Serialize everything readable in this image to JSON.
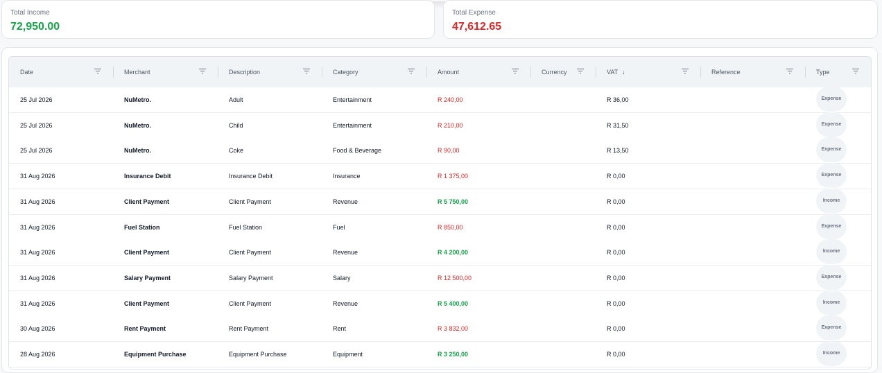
{
  "summary": {
    "income_label": "Total Income",
    "income_value": "72,950.00",
    "expense_label": "Total Expense",
    "expense_value": "47,612.65",
    "income_color": "#16a34a",
    "expense_color": "#dc2626"
  },
  "table": {
    "columns": [
      "Date",
      "Merchant",
      "Description",
      "Category",
      "Amount",
      "Currency",
      "VAT",
      "Reference",
      "Type"
    ],
    "sorted_column": "VAT",
    "sort_direction": "descending",
    "rows": [
      {
        "date": "25 Jul 2026",
        "merchant": "NuMetro.",
        "description": "Adult",
        "category": "Entertainment",
        "amount": "R 240,00",
        "amount_kind": "neg",
        "currency": "",
        "vat": "R 36,00",
        "reference": "",
        "type": "Expense"
      },
      {
        "date": "25 Jul 2026",
        "merchant": "NuMetro.",
        "description": "Child",
        "category": "Entertainment",
        "amount": "R 210,00",
        "amount_kind": "neg",
        "currency": "",
        "vat": "R 31,50",
        "reference": "",
        "type": "Expense"
      },
      {
        "date": "25 Jul 2026",
        "merchant": "NuMetro.",
        "description": "Coke",
        "category": "Food & Beverage",
        "amount": "R 90,00",
        "amount_kind": "neg",
        "currency": "",
        "vat": "R 13,50",
        "reference": "",
        "type": "Expense"
      },
      {
        "date": "31 Aug 2026",
        "merchant": "Insurance Debit",
        "description": "Insurance Debit",
        "category": "Insurance",
        "amount": "R 1 375,00",
        "amount_kind": "neg",
        "currency": "",
        "vat": "R 0,00",
        "reference": "",
        "type": "Expense"
      },
      {
        "date": "31 Aug 2026",
        "merchant": "Client Payment",
        "description": "Client Payment",
        "category": "Revenue",
        "amount": "R 5 750,00",
        "amount_kind": "pos",
        "currency": "",
        "vat": "R 0,00",
        "reference": "",
        "type": "Income"
      },
      {
        "date": "31 Aug 2026",
        "merchant": "Fuel Station",
        "description": "Fuel Station",
        "category": "Fuel",
        "amount": "R 850,00",
        "amount_kind": "neg",
        "currency": "",
        "vat": "R 0,00",
        "reference": "",
        "type": "Expense"
      },
      {
        "date": "31 Aug 2026",
        "merchant": "Client Payment",
        "description": "Client Payment",
        "category": "Revenue",
        "amount": "R 4 200,00",
        "amount_kind": "pos",
        "currency": "",
        "vat": "R 0,00",
        "reference": "",
        "type": "Income"
      },
      {
        "date": "31 Aug 2026",
        "merchant": "Salary Payment",
        "description": "Salary Payment",
        "category": "Salary",
        "amount": "R 12 500,00",
        "amount_kind": "neg",
        "currency": "",
        "vat": "R 0,00",
        "reference": "",
        "type": "Expense"
      },
      {
        "date": "31 Aug 2026",
        "merchant": "Client Payment",
        "description": "Client Payment",
        "category": "Revenue",
        "amount": "R 5 400,00",
        "amount_kind": "pos",
        "currency": "",
        "vat": "R 0,00",
        "reference": "",
        "type": "Income"
      },
      {
        "date": "30 Aug 2026",
        "merchant": "Rent Payment",
        "description": "Rent Payment",
        "category": "Rent",
        "amount": "R 3 832,00",
        "amount_kind": "neg",
        "currency": "",
        "vat": "R 0,00",
        "reference": "",
        "type": "Expense"
      },
      {
        "date": "28 Aug 2026",
        "merchant": "Equipment Purchase",
        "description": "Equipment Purchase",
        "category": "Equipment",
        "amount": "R 3 250,00",
        "amount_kind": "pos",
        "currency": "",
        "vat": "R 0,00",
        "reference": "",
        "type": "Income"
      }
    ]
  },
  "icons": {
    "filter": "filter-icon",
    "sort": "arrow-down-icon"
  }
}
